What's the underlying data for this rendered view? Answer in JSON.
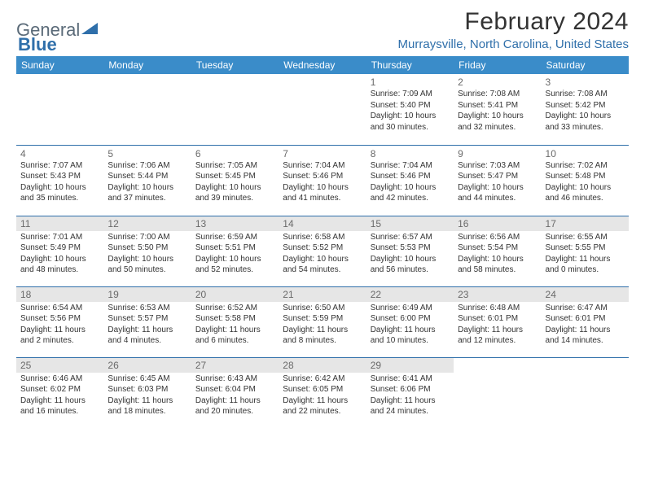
{
  "logo": {
    "part1": "General",
    "part2": "Blue"
  },
  "title": "February 2024",
  "location": "Murraysville, North Carolina, United States",
  "colors": {
    "header_bg": "#3a8cc9",
    "rule": "#2f6faa",
    "shade": "#e6e6e6",
    "link": "#2f6faa",
    "logo_gray": "#5a6a78"
  },
  "dayHeaders": [
    "Sunday",
    "Monday",
    "Tuesday",
    "Wednesday",
    "Thursday",
    "Friday",
    "Saturday"
  ],
  "weeks": [
    [
      null,
      null,
      null,
      null,
      {
        "n": "1",
        "sr": "7:09 AM",
        "ss": "5:40 PM",
        "dl": "10 hours and 30 minutes."
      },
      {
        "n": "2",
        "sr": "7:08 AM",
        "ss": "5:41 PM",
        "dl": "10 hours and 32 minutes."
      },
      {
        "n": "3",
        "sr": "7:08 AM",
        "ss": "5:42 PM",
        "dl": "10 hours and 33 minutes."
      }
    ],
    [
      {
        "n": "4",
        "sr": "7:07 AM",
        "ss": "5:43 PM",
        "dl": "10 hours and 35 minutes."
      },
      {
        "n": "5",
        "sr": "7:06 AM",
        "ss": "5:44 PM",
        "dl": "10 hours and 37 minutes."
      },
      {
        "n": "6",
        "sr": "7:05 AM",
        "ss": "5:45 PM",
        "dl": "10 hours and 39 minutes."
      },
      {
        "n": "7",
        "sr": "7:04 AM",
        "ss": "5:46 PM",
        "dl": "10 hours and 41 minutes."
      },
      {
        "n": "8",
        "sr": "7:04 AM",
        "ss": "5:46 PM",
        "dl": "10 hours and 42 minutes."
      },
      {
        "n": "9",
        "sr": "7:03 AM",
        "ss": "5:47 PM",
        "dl": "10 hours and 44 minutes."
      },
      {
        "n": "10",
        "sr": "7:02 AM",
        "ss": "5:48 PM",
        "dl": "10 hours and 46 minutes."
      }
    ],
    [
      {
        "n": "11",
        "sr": "7:01 AM",
        "ss": "5:49 PM",
        "dl": "10 hours and 48 minutes.",
        "shade": true
      },
      {
        "n": "12",
        "sr": "7:00 AM",
        "ss": "5:50 PM",
        "dl": "10 hours and 50 minutes.",
        "shade": true
      },
      {
        "n": "13",
        "sr": "6:59 AM",
        "ss": "5:51 PM",
        "dl": "10 hours and 52 minutes.",
        "shade": true
      },
      {
        "n": "14",
        "sr": "6:58 AM",
        "ss": "5:52 PM",
        "dl": "10 hours and 54 minutes.",
        "shade": true
      },
      {
        "n": "15",
        "sr": "6:57 AM",
        "ss": "5:53 PM",
        "dl": "10 hours and 56 minutes.",
        "shade": true
      },
      {
        "n": "16",
        "sr": "6:56 AM",
        "ss": "5:54 PM",
        "dl": "10 hours and 58 minutes.",
        "shade": true
      },
      {
        "n": "17",
        "sr": "6:55 AM",
        "ss": "5:55 PM",
        "dl": "11 hours and 0 minutes.",
        "shade": true
      }
    ],
    [
      {
        "n": "18",
        "sr": "6:54 AM",
        "ss": "5:56 PM",
        "dl": "11 hours and 2 minutes.",
        "shade": true
      },
      {
        "n": "19",
        "sr": "6:53 AM",
        "ss": "5:57 PM",
        "dl": "11 hours and 4 minutes.",
        "shade": true
      },
      {
        "n": "20",
        "sr": "6:52 AM",
        "ss": "5:58 PM",
        "dl": "11 hours and 6 minutes.",
        "shade": true
      },
      {
        "n": "21",
        "sr": "6:50 AM",
        "ss": "5:59 PM",
        "dl": "11 hours and 8 minutes.",
        "shade": true
      },
      {
        "n": "22",
        "sr": "6:49 AM",
        "ss": "6:00 PM",
        "dl": "11 hours and 10 minutes.",
        "shade": true
      },
      {
        "n": "23",
        "sr": "6:48 AM",
        "ss": "6:01 PM",
        "dl": "11 hours and 12 minutes.",
        "shade": true
      },
      {
        "n": "24",
        "sr": "6:47 AM",
        "ss": "6:01 PM",
        "dl": "11 hours and 14 minutes.",
        "shade": true
      }
    ],
    [
      {
        "n": "25",
        "sr": "6:46 AM",
        "ss": "6:02 PM",
        "dl": "11 hours and 16 minutes.",
        "shade": true
      },
      {
        "n": "26",
        "sr": "6:45 AM",
        "ss": "6:03 PM",
        "dl": "11 hours and 18 minutes.",
        "shade": true
      },
      {
        "n": "27",
        "sr": "6:43 AM",
        "ss": "6:04 PM",
        "dl": "11 hours and 20 minutes.",
        "shade": true
      },
      {
        "n": "28",
        "sr": "6:42 AM",
        "ss": "6:05 PM",
        "dl": "11 hours and 22 minutes.",
        "shade": true
      },
      {
        "n": "29",
        "sr": "6:41 AM",
        "ss": "6:06 PM",
        "dl": "11 hours and 24 minutes.",
        "shade": true
      },
      null,
      null
    ]
  ],
  "labels": {
    "sunrise": "Sunrise: ",
    "sunset": "Sunset: ",
    "daylight": "Daylight: "
  }
}
